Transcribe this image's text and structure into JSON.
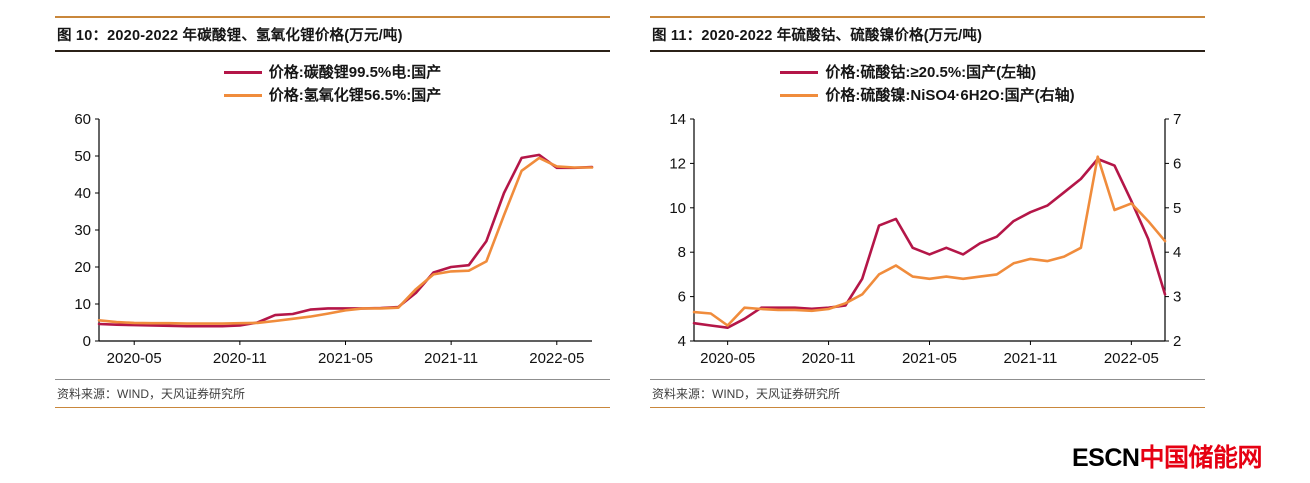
{
  "page": {
    "background": "#ffffff",
    "accent_rule_color": "#c9873b"
  },
  "chart_data": [
    {
      "type": "line",
      "title": "图 10：2020-2022 年碳酸锂、氢氧化锂价格(万元/吨)",
      "source": "资料来源：WIND，天风证券研究所",
      "grid": false,
      "legend_position": "top",
      "x": [
        "2020-03",
        "2020-04",
        "2020-05",
        "2020-06",
        "2020-07",
        "2020-08",
        "2020-09",
        "2020-10",
        "2020-11",
        "2020-12",
        "2021-01",
        "2021-02",
        "2021-03",
        "2021-04",
        "2021-05",
        "2021-06",
        "2021-07",
        "2021-08",
        "2021-09",
        "2021-10",
        "2021-11",
        "2021-12",
        "2022-01",
        "2022-02",
        "2022-03",
        "2022-04",
        "2022-05",
        "2022-06",
        "2022-07"
      ],
      "x_tick_labels": [
        "2020-05",
        "2020-11",
        "2021-05",
        "2021-11",
        "2022-05"
      ],
      "ylim": [
        0,
        60
      ],
      "yticks": [
        0,
        10,
        20,
        30,
        40,
        50,
        60
      ],
      "series": [
        {
          "name": "价格:碳酸锂99.5%电:国产",
          "color": "#b41648",
          "values": [
            4.6,
            4.4,
            4.3,
            4.2,
            4.1,
            4.0,
            4.0,
            4.0,
            4.2,
            5.0,
            7.0,
            7.3,
            8.5,
            8.8,
            8.8,
            8.8,
            8.9,
            9.2,
            13.0,
            18.5,
            20.0,
            20.5,
            27.0,
            40.0,
            49.5,
            50.3,
            46.8,
            46.8,
            47.0
          ]
        },
        {
          "name": "价格:氢氧化锂56.5%:国产",
          "color": "#f08c3c",
          "values": [
            5.6,
            5.1,
            4.9,
            4.8,
            4.8,
            4.7,
            4.7,
            4.7,
            4.8,
            4.9,
            5.4,
            6.0,
            6.6,
            7.4,
            8.3,
            8.8,
            8.8,
            9.0,
            14.0,
            18.0,
            18.8,
            19.0,
            21.5,
            34.0,
            46.0,
            49.5,
            47.2,
            46.9,
            46.9
          ]
        }
      ]
    },
    {
      "type": "line",
      "title": "图 11：2020-2022 年硫酸钴、硫酸镍价格(万元/吨)",
      "source": "资料来源：WIND，天风证券研究所",
      "grid": false,
      "legend_position": "top",
      "x": [
        "2020-03",
        "2020-04",
        "2020-05",
        "2020-06",
        "2020-07",
        "2020-08",
        "2020-09",
        "2020-10",
        "2020-11",
        "2020-12",
        "2021-01",
        "2021-02",
        "2021-03",
        "2021-04",
        "2021-05",
        "2021-06",
        "2021-07",
        "2021-08",
        "2021-09",
        "2021-10",
        "2021-11",
        "2021-12",
        "2022-01",
        "2022-02",
        "2022-03",
        "2022-04",
        "2022-05",
        "2022-06",
        "2022-07"
      ],
      "x_tick_labels": [
        "2020-05",
        "2020-11",
        "2021-05",
        "2021-11",
        "2022-05"
      ],
      "ylim_left": [
        4,
        14
      ],
      "yticks_left": [
        4,
        6,
        8,
        10,
        12,
        14
      ],
      "ylim_right": [
        2,
        7
      ],
      "yticks_right": [
        2,
        3,
        4,
        5,
        6,
        7
      ],
      "series": [
        {
          "name": "价格:硫酸钴:≥20.5%:国产(左轴)",
          "axis": "left",
          "color": "#b41648",
          "values": [
            4.8,
            4.7,
            4.6,
            5.0,
            5.5,
            5.5,
            5.5,
            5.45,
            5.5,
            5.6,
            6.8,
            9.2,
            9.5,
            8.2,
            7.9,
            8.2,
            7.9,
            8.4,
            8.7,
            9.4,
            9.8,
            10.1,
            10.7,
            11.3,
            12.2,
            11.9,
            10.3,
            8.6,
            6.1
          ]
        },
        {
          "name": "价格:硫酸镍:NiSO4·6H2O:国产(右轴)",
          "axis": "right",
          "color": "#f08c3c",
          "values": [
            2.65,
            2.62,
            2.35,
            2.75,
            2.72,
            2.7,
            2.7,
            2.68,
            2.72,
            2.85,
            3.05,
            3.5,
            3.7,
            3.45,
            3.4,
            3.45,
            3.4,
            3.45,
            3.5,
            3.75,
            3.85,
            3.8,
            3.9,
            4.1,
            6.15,
            4.95,
            5.1,
            4.7,
            4.25
          ]
        }
      ]
    }
  ],
  "logo": {
    "escn": "ESCN",
    "site_name": "中国储能网",
    "escn_color": "#000000",
    "site_color": "#e60012"
  }
}
